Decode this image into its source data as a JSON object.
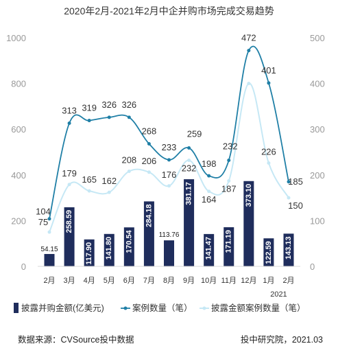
{
  "page": {
    "source_left": "数据来源：CVSource投中数据",
    "source_right": "投中研究院，2021.03"
  },
  "chart_data": {
    "type": "bar",
    "title": "2020年2月-2021年2月中企并购市场完成交易趋势",
    "categories": [
      "2月",
      "3月",
      "4月",
      "5月",
      "6月",
      "7月",
      "8月",
      "9月",
      "10月",
      "11月",
      "12月",
      "1月",
      "2月"
    ],
    "year_annotation": "2021",
    "yleft": {
      "range": [
        0,
        1000
      ],
      "ticks": [
        "0",
        "200",
        "400",
        "600",
        "800",
        "1000"
      ]
    },
    "yright": {
      "range": [
        0,
        500
      ],
      "ticks": [
        "0",
        "100",
        "200",
        "300",
        "400",
        "500"
      ]
    },
    "grid": false,
    "legend_position": "bottom",
    "series": [
      {
        "name": "披露并购金额(亿美元)",
        "kind": "bar",
        "axis": "left",
        "color": "#1f2d5c",
        "values": [
          54.15,
          258.59,
          117.9,
          141.8,
          170.54,
          284.18,
          113.76,
          381.17,
          141.47,
          171.19,
          373.1,
          122.59,
          143.13
        ],
        "labels": [
          "54.15",
          "258.59",
          "117.90",
          "141.80",
          "170.54",
          "284.18",
          "113.76",
          "381.17",
          "141.47",
          "171.19",
          "373.10",
          "122.59",
          "143.13"
        ]
      },
      {
        "name": "案例数量（笔）",
        "kind": "line",
        "axis": "right",
        "color": "#1f7fa6",
        "values": [
          104,
          313,
          319,
          326,
          326,
          268,
          233,
          259,
          198,
          232,
          472,
          401,
          185
        ],
        "labels": [
          "104",
          "313",
          "319",
          "326",
          "326",
          "268",
          "233",
          "259",
          "198",
          "232",
          "472",
          "401",
          "185"
        ]
      },
      {
        "name": "披露金额案例数量（笔）",
        "kind": "line",
        "axis": "right",
        "color": "#c6e8f5",
        "values": [
          75,
          179,
          165,
          162,
          208,
          206,
          176,
          232,
          164,
          187,
          400,
          226,
          150
        ],
        "labels": [
          "75",
          "179",
          "165",
          "162",
          "208",
          "206",
          "176",
          "232",
          "164",
          "187",
          "",
          "226",
          "150"
        ]
      }
    ]
  }
}
